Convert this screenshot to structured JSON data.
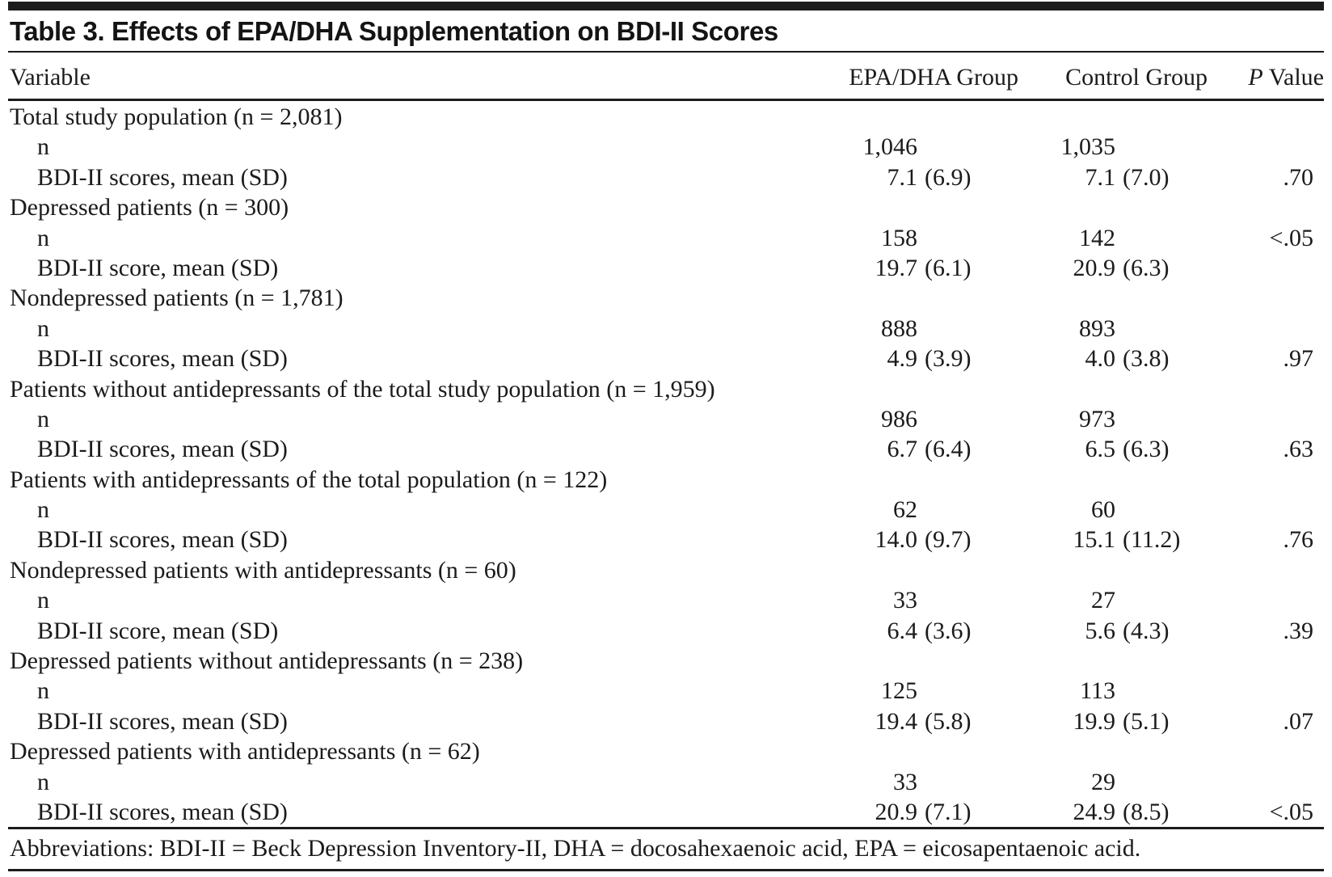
{
  "title": "Table 3. Effects of EPA/DHA Supplementation on BDI-II Scores",
  "columns": {
    "variable": "Variable",
    "epa": "EPA/DHA Group",
    "control": "Control Group",
    "p_italic": "P",
    "p_rest": "Value"
  },
  "table": {
    "rows": [
      {
        "label": "Total study population (n = 2,081)",
        "indent": false,
        "epa": "",
        "epa_sd": "",
        "control": "",
        "control_sd": "",
        "p": ""
      },
      {
        "label": "n",
        "indent": true,
        "epa": "1,046",
        "epa_sd": "",
        "control": "1,035",
        "control_sd": "",
        "p": ""
      },
      {
        "label": "BDI-II scores, mean (SD)",
        "indent": true,
        "epa": "7.1",
        "epa_sd": "(6.9)",
        "control": "7.1",
        "control_sd": "(7.0)",
        "p": ".70"
      },
      {
        "label": "Depressed patients (n = 300)",
        "indent": false,
        "epa": "",
        "epa_sd": "",
        "control": "",
        "control_sd": "",
        "p": ""
      },
      {
        "label": "n",
        "indent": true,
        "epa": "158",
        "epa_sd": "",
        "control": "142",
        "control_sd": "",
        "p": "<.05"
      },
      {
        "label": "BDI-II score, mean (SD)",
        "indent": true,
        "epa": "19.7",
        "epa_sd": "(6.1)",
        "control": "20.9",
        "control_sd": "(6.3)",
        "p": ""
      },
      {
        "label": "Nondepressed patients (n = 1,781)",
        "indent": false,
        "epa": "",
        "epa_sd": "",
        "control": "",
        "control_sd": "",
        "p": ""
      },
      {
        "label": "n",
        "indent": true,
        "epa": "888",
        "epa_sd": "",
        "control": "893",
        "control_sd": "",
        "p": ""
      },
      {
        "label": "BDI-II scores, mean (SD)",
        "indent": true,
        "epa": "4.9",
        "epa_sd": "(3.9)",
        "control": "4.0",
        "control_sd": "(3.8)",
        "p": ".97"
      },
      {
        "label": "Patients without antidepressants of the total study population (n = 1,959)",
        "indent": false,
        "epa": "",
        "epa_sd": "",
        "control": "",
        "control_sd": "",
        "p": ""
      },
      {
        "label": "n",
        "indent": true,
        "epa": "986",
        "epa_sd": "",
        "control": "973",
        "control_sd": "",
        "p": ""
      },
      {
        "label": "BDI-II scores, mean (SD)",
        "indent": true,
        "epa": "6.7",
        "epa_sd": "(6.4)",
        "control": "6.5",
        "control_sd": "(6.3)",
        "p": ".63"
      },
      {
        "label": "Patients with antidepressants of the total population (n = 122)",
        "indent": false,
        "epa": "",
        "epa_sd": "",
        "control": "",
        "control_sd": "",
        "p": ""
      },
      {
        "label": "n",
        "indent": true,
        "epa": "62",
        "epa_sd": "",
        "control": "60",
        "control_sd": "",
        "p": ""
      },
      {
        "label": "BDI-II scores, mean (SD)",
        "indent": true,
        "epa": "14.0",
        "epa_sd": "(9.7)",
        "control": "15.1",
        "control_sd": "(11.2)",
        "p": ".76"
      },
      {
        "label": "Nondepressed patients with antidepressants (n = 60)",
        "indent": false,
        "epa": "",
        "epa_sd": "",
        "control": "",
        "control_sd": "",
        "p": ""
      },
      {
        "label": "n",
        "indent": true,
        "epa": "33",
        "epa_sd": "",
        "control": "27",
        "control_sd": "",
        "p": ""
      },
      {
        "label": "BDI-II score, mean (SD)",
        "indent": true,
        "epa": "6.4",
        "epa_sd": "(3.6)",
        "control": "5.6",
        "control_sd": "(4.3)",
        "p": ".39"
      },
      {
        "label": "Depressed patients without antidepressants (n = 238)",
        "indent": false,
        "epa": "",
        "epa_sd": "",
        "control": "",
        "control_sd": "",
        "p": ""
      },
      {
        "label": "n",
        "indent": true,
        "epa": "125",
        "epa_sd": "",
        "control": "113",
        "control_sd": "",
        "p": ""
      },
      {
        "label": "BDI-II scores, mean (SD)",
        "indent": true,
        "epa": "19.4",
        "epa_sd": "(5.8)",
        "control": "19.9",
        "control_sd": "(5.1)",
        "p": ".07"
      },
      {
        "label": "Depressed patients with antidepressants (n = 62)",
        "indent": false,
        "epa": "",
        "epa_sd": "",
        "control": "",
        "control_sd": "",
        "p": ""
      },
      {
        "label": "n",
        "indent": true,
        "epa": "33",
        "epa_sd": "",
        "control": "29",
        "control_sd": "",
        "p": ""
      },
      {
        "label": "BDI-II scores, mean (SD)",
        "indent": true,
        "epa": "20.9",
        "epa_sd": "(7.1)",
        "control": "24.9",
        "control_sd": "(8.5)",
        "p": "<.05"
      }
    ]
  },
  "footer": "Abbreviations: BDI-II = Beck Depression Inventory-II, DHA = docosahexaenoic acid, EPA = eicosapentaenoic acid.",
  "colors": {
    "rule": "#1c1c1c",
    "text": "#1b1b1b",
    "background": "#ffffff"
  }
}
